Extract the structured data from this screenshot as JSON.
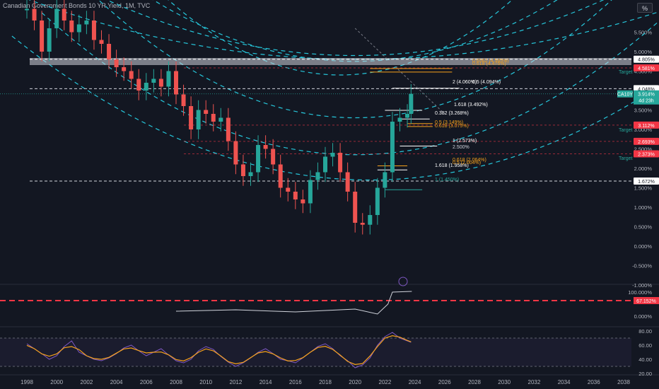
{
  "header": {
    "title": "Canadian Government Bonds 10 YR Yield, 1M, TVC",
    "unit_button": "%"
  },
  "colors": {
    "background": "#131722",
    "up": "#26a69a",
    "down": "#ef5350",
    "arc": "#26c6da",
    "rsi": "#7e57c2",
    "rsi_ma": "#f7a21b",
    "alert": "#f23645"
  },
  "chart_data": {
    "type": "line",
    "title": "Canadian Government Bonds 10 YR Yield, 1M, TVC",
    "series": [
      {
        "name": "CA10Y",
        "x": [
          1998.0,
          1998.5,
          1999.0,
          1999.5,
          2000.0,
          2000.5,
          2001.0,
          2001.5,
          2002.0,
          2002.5,
          2003.0,
          2003.5,
          2004.0,
          2004.5,
          2005.0,
          2005.5,
          2006.0,
          2006.5,
          2007.0,
          2007.5,
          2008.0,
          2008.5,
          2009.0,
          2009.5,
          2010.0,
          2010.5,
          2011.0,
          2011.5,
          2012.0,
          2012.5,
          2013.0,
          2013.5,
          2014.0,
          2014.5,
          2015.0,
          2015.5,
          2016.0,
          2016.5,
          2017.0,
          2017.5,
          2018.0,
          2018.5,
          2019.0,
          2019.5,
          2020.0,
          2020.5,
          2021.0,
          2021.5,
          2022.0,
          2022.5,
          2023.0,
          2023.5,
          2023.75
        ],
        "values": [
          6.1,
          5.8,
          5.0,
          5.6,
          6.1,
          5.8,
          5.5,
          5.7,
          5.8,
          5.3,
          5.2,
          4.8,
          4.6,
          4.5,
          4.3,
          4.0,
          4.2,
          4.3,
          4.1,
          4.5,
          3.9,
          3.6,
          3.0,
          3.5,
          3.4,
          3.2,
          3.3,
          2.7,
          2.1,
          1.8,
          1.9,
          2.6,
          2.5,
          2.1,
          1.5,
          1.4,
          1.2,
          1.1,
          1.7,
          1.9,
          2.3,
          2.4,
          1.9,
          1.4,
          0.6,
          0.55,
          0.8,
          1.5,
          1.9,
          3.2,
          3.3,
          3.4,
          3.914
        ]
      }
    ],
    "x_ticks": [
      "1998",
      "2000",
      "2002",
      "2004",
      "2006",
      "2008",
      "2010",
      "2012",
      "2014",
      "2016",
      "2018",
      "2020",
      "2022",
      "2024",
      "2026",
      "2028",
      "2030",
      "2032",
      "2034",
      "2036",
      "2038"
    ],
    "y_ticks": [
      "5.500%",
      "5.000%",
      "4.500%",
      "4.000%",
      "3.500%",
      "3.000%",
      "2.500%",
      "2.000%",
      "1.500%",
      "1.000%",
      "0.500%",
      "0.000%",
      "-0.500%",
      "-1.000%"
    ],
    "ylim": [
      -1.0,
      6.0
    ],
    "price_labels": {
      "current": "3.914%",
      "current_symbol": "CA10Y",
      "countdown": "4d 23h",
      "high_line": "4.805%",
      "target1": "4.581%",
      "line2": "4.048%",
      "target2": "3.112%",
      "line3": "2.693%",
      "target3": "2.373%",
      "line4": "1.672%"
    },
    "target_label": "Target",
    "fib_labels": [
      "0.618 (4.476%)",
      "0.6562 (4.565%)",
      "2 (4.060%)",
      "0.5 (4.094%)",
      "1.618 (3.492%)",
      "0.382 (3.268%)",
      "0.5 (3.149%)",
      "0.618 (3.075%)",
      "1 (2.573%)",
      "2.500%",
      "0.618 (2.064%)",
      "1.618 (1.958%)",
      "0.5 (2.004%)",
      "1 (1.450%)"
    ],
    "indicator1": {
      "ticks": [
        "100.000%",
        "0.000%"
      ],
      "alert_level": "67.152%"
    },
    "rsi": {
      "ticks": [
        "80.00",
        "60.00",
        "40.00",
        "20.00"
      ],
      "upper": 70,
      "lower": 30,
      "values": [
        62,
        55,
        48,
        40,
        45,
        58,
        66,
        50,
        45,
        40,
        38,
        42,
        48,
        56,
        60,
        52,
        45,
        50,
        55,
        46,
        38,
        35,
        40,
        52,
        58,
        54,
        44,
        36,
        30,
        35,
        42,
        50,
        55,
        48,
        40,
        38,
        35,
        42,
        50,
        58,
        62,
        55,
        45,
        38,
        28,
        32,
        42,
        60,
        72,
        78,
        70,
        66,
        64
      ]
    }
  }
}
